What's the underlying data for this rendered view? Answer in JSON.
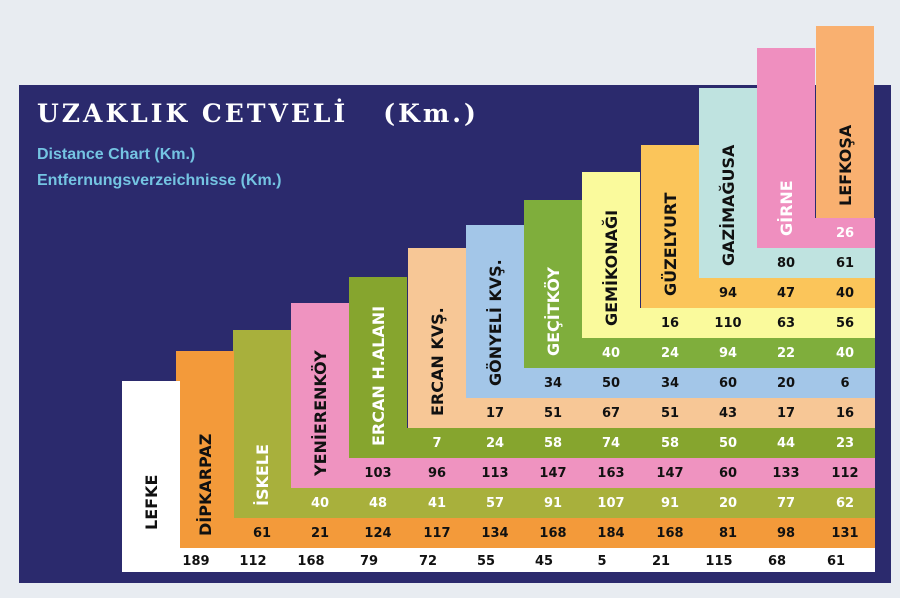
{
  "title": "UZAKLIK CETVELİ",
  "title_unit": "(Km.)",
  "subtitle_en": "Distance Chart (Km.)",
  "subtitle_de": "Entfernungsverzeichnisse (Km.)",
  "colors": {
    "background": "#2b2a6d",
    "title": "#ffffff",
    "subtitle": "#74c4e2",
    "bands": [
      "#ffffff",
      "#f39a3a",
      "#a8b03c",
      "#ef93c0",
      "#86a52e",
      "#f7c796",
      "#a3c6e8",
      "#7fae3c",
      "#fafa9c",
      "#fbc55a",
      "#bfe3e0",
      "#ef8fbf",
      "#f9b070"
    ]
  },
  "chart_data": {
    "type": "table",
    "title": "UZAKLIK CETVELİ (Km.)",
    "towns": [
      "LEFKE",
      "DİPKARPAZ",
      "İSKELE",
      "YENİERENKÖY",
      "ERCAN H.ALANI",
      "ERCAN KVŞ.",
      "GÖNYELİ KVŞ.",
      "GEÇİTKÖY",
      "GEMİKONAĞI",
      "GÜZELYURT",
      "GAZİMAĞUSA",
      "GİRNE",
      "LEFKOŞA"
    ],
    "rows": [
      {
        "town": "LEFKE",
        "values": [
          189,
          112,
          168,
          79,
          72,
          55,
          45,
          5,
          21,
          115,
          68,
          61
        ]
      },
      {
        "town": "DİPKARPAZ",
        "values": [
          61,
          21,
          124,
          117,
          134,
          168,
          184,
          168,
          81,
          98,
          131
        ]
      },
      {
        "town": "İSKELE",
        "values": [
          40,
          48,
          41,
          57,
          91,
          107,
          91,
          20,
          77,
          62
        ]
      },
      {
        "town": "YENİERENKÖY",
        "values": [
          103,
          96,
          113,
          147,
          163,
          147,
          60,
          133,
          112
        ]
      },
      {
        "town": "ERCAN H.ALANI",
        "values": [
          7,
          24,
          58,
          74,
          58,
          50,
          44,
          23
        ]
      },
      {
        "town": "ERCAN KVŞ.",
        "values": [
          17,
          51,
          67,
          51,
          43,
          17,
          16
        ]
      },
      {
        "town": "GÖNYELİ KVŞ.",
        "values": [
          34,
          50,
          34,
          60,
          20,
          6
        ]
      },
      {
        "town": "GEÇİTKÖY",
        "values": [
          40,
          24,
          94,
          22,
          40
        ]
      },
      {
        "town": "GEMİKONAĞI",
        "values": [
          16,
          110,
          63,
          56
        ]
      },
      {
        "town": "GÜZELYURT",
        "values": [
          94,
          47,
          40
        ]
      },
      {
        "town": "GAZİMAĞUSA",
        "values": [
          80,
          61
        ]
      },
      {
        "town": "GİRNE",
        "values": [
          26
        ]
      }
    ]
  }
}
